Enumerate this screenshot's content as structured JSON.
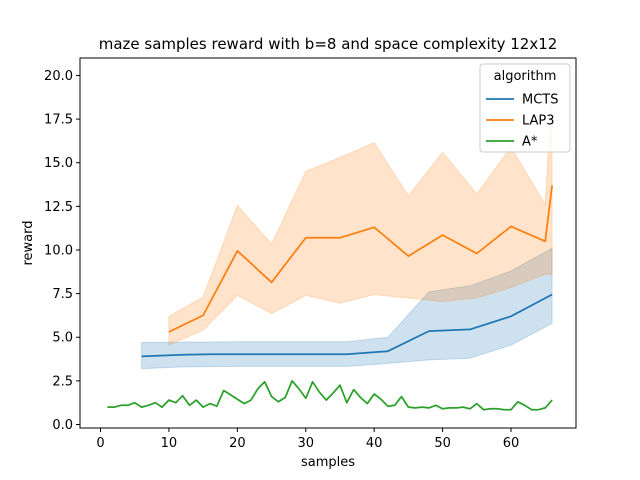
{
  "chart_data": {
    "type": "line",
    "title": "maze samples reward with b=8 and space complexity 12x12",
    "xlabel": "samples",
    "ylabel": "reward",
    "xlim": [
      -3,
      69.5
    ],
    "ylim": [
      -0.2,
      21
    ],
    "xticks": [
      0,
      10,
      20,
      30,
      40,
      50,
      60
    ],
    "yticks": [
      0.0,
      2.5,
      5.0,
      7.5,
      10.0,
      12.5,
      15.0,
      17.5,
      20.0
    ],
    "ytick_labels": [
      "0.0",
      "2.5",
      "5.0",
      "7.5",
      "10.0",
      "12.5",
      "15.0",
      "17.5",
      "20.0"
    ],
    "grid": false,
    "legend": {
      "title": "algorithm",
      "position": "top-right"
    },
    "series": [
      {
        "name": "MCTS",
        "color": "#1f77b4",
        "x": [
          6,
          12,
          16,
          20,
          26,
          31,
          36,
          42,
          48,
          54,
          60,
          66
        ],
        "y": [
          3.9,
          4.0,
          4.02,
          4.03,
          4.03,
          4.03,
          4.03,
          4.2,
          5.35,
          5.45,
          6.2,
          7.45
        ],
        "lower": [
          3.2,
          3.3,
          3.32,
          3.33,
          3.33,
          3.33,
          3.33,
          3.5,
          3.7,
          3.8,
          4.55,
          5.8
        ],
        "upper": [
          4.7,
          4.72,
          4.73,
          4.74,
          4.74,
          4.74,
          4.74,
          5.0,
          7.6,
          7.95,
          8.8,
          10.1
        ]
      },
      {
        "name": "LAP3",
        "color": "#ff7f0e",
        "x": [
          10,
          15,
          20,
          25,
          30,
          35,
          40,
          45,
          50,
          55,
          60,
          65,
          66
        ],
        "y": [
          5.3,
          6.25,
          9.95,
          8.15,
          10.7,
          10.7,
          11.3,
          9.65,
          10.85,
          9.8,
          11.35,
          10.5,
          13.7
        ],
        "lower": [
          4.55,
          5.4,
          7.4,
          6.35,
          7.4,
          6.95,
          7.45,
          7.25,
          7.05,
          7.25,
          7.85,
          8.6,
          8.6
        ],
        "upper": [
          6.2,
          7.3,
          12.55,
          10.35,
          14.5,
          15.3,
          16.15,
          13.1,
          15.6,
          13.2,
          15.9,
          12.6,
          19.4
        ]
      },
      {
        "name": "A*",
        "color": "#2ca02c",
        "x": [
          1,
          2,
          3,
          4,
          5,
          6,
          7,
          8,
          9,
          10,
          11,
          12,
          13,
          14,
          15,
          16,
          17,
          18,
          19,
          20,
          21,
          22,
          23,
          24,
          25,
          26,
          27,
          28,
          29,
          30,
          31,
          32,
          33,
          34,
          35,
          36,
          37,
          38,
          39,
          40,
          41,
          42,
          43,
          44,
          45,
          46,
          47,
          48,
          49,
          50,
          51,
          52,
          53,
          54,
          55,
          56,
          57,
          58,
          59,
          60,
          61,
          62,
          63,
          64,
          65,
          66
        ],
        "y": [
          1.0,
          1.0,
          1.1,
          1.1,
          1.25,
          1.0,
          1.1,
          1.25,
          1.0,
          1.4,
          1.25,
          1.65,
          1.1,
          1.4,
          1.0,
          1.2,
          1.05,
          1.95,
          1.7,
          1.45,
          1.2,
          1.4,
          2.05,
          2.45,
          1.6,
          1.3,
          1.55,
          2.5,
          2.05,
          1.5,
          2.45,
          1.85,
          1.4,
          1.8,
          2.25,
          1.25,
          2.0,
          1.55,
          1.2,
          1.75,
          1.45,
          1.05,
          1.1,
          1.6,
          1.0,
          0.95,
          1.0,
          0.95,
          1.1,
          0.9,
          0.95,
          0.95,
          1.0,
          0.9,
          1.2,
          0.85,
          0.9,
          0.9,
          0.85,
          0.85,
          1.3,
          1.1,
          0.85,
          0.85,
          0.95,
          1.4
        ]
      }
    ]
  }
}
